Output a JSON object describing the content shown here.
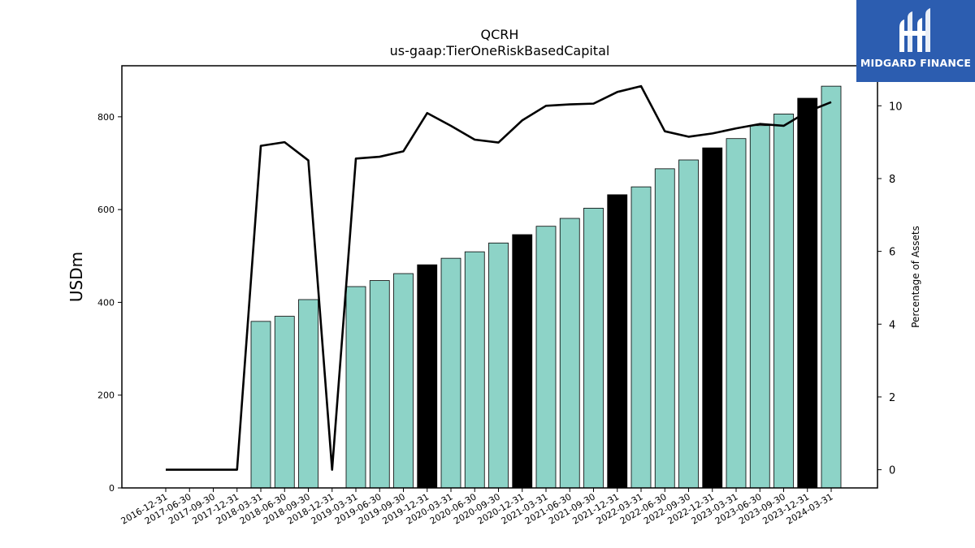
{
  "chart_data": {
    "type": "bar+line",
    "title": "QCRH",
    "subtitle": "us-gaap:TierOneRiskBasedCapital",
    "ylabel": "USDm",
    "y2label": "Percentage of Assets",
    "ylim": [
      0,
      910
    ],
    "y2lim": [
      -0.5,
      11.1
    ],
    "yticks": [
      0,
      200,
      400,
      600,
      800
    ],
    "y2ticks": [
      0,
      2,
      4,
      6,
      8,
      10
    ],
    "categories": [
      "2016-12-31",
      "2017-06-30",
      "2017-09-30",
      "2017-12-31",
      "2018-03-31",
      "2018-06-30",
      "2018-09-30",
      "2018-12-31",
      "2019-03-31",
      "2019-06-30",
      "2019-09-30",
      "2019-12-31",
      "2020-03-31",
      "2020-06-30",
      "2020-09-30",
      "2020-12-31",
      "2021-03-31",
      "2021-06-30",
      "2021-09-30",
      "2021-12-31",
      "2022-03-31",
      "2022-06-30",
      "2022-09-30",
      "2022-12-31",
      "2023-03-31",
      "2023-06-30",
      "2023-09-30",
      "2023-12-31",
      "2024-03-31"
    ],
    "series": [
      {
        "kind": "bar",
        "values": [
          null,
          null,
          null,
          null,
          359,
          370,
          406,
          null,
          434,
          447,
          462,
          481,
          495,
          509,
          528,
          546,
          564,
          581,
          603,
          632,
          649,
          688,
          707,
          733,
          753,
          781,
          806,
          840,
          866
        ],
        "colors": [
          "",
          "",
          "",
          "",
          "#8dd3c7",
          "#8dd3c7",
          "#8dd3c7",
          "",
          "#8dd3c7",
          "#8dd3c7",
          "#8dd3c7",
          "#000000",
          "#8dd3c7",
          "#8dd3c7",
          "#8dd3c7",
          "#000000",
          "#8dd3c7",
          "#8dd3c7",
          "#8dd3c7",
          "#000000",
          "#8dd3c7",
          "#8dd3c7",
          "#8dd3c7",
          "#000000",
          "#8dd3c7",
          "#8dd3c7",
          "#8dd3c7",
          "#000000",
          "#8dd3c7"
        ]
      },
      {
        "kind": "line",
        "axis": "right",
        "color": "#000000",
        "values": [
          0,
          0,
          0,
          0,
          8.9,
          9.0,
          8.5,
          0,
          8.55,
          8.6,
          8.75,
          9.8,
          9.45,
          9.07,
          8.99,
          9.6,
          10.0,
          10.04,
          10.06,
          10.38,
          10.54,
          9.3,
          9.15,
          9.24,
          9.38,
          9.5,
          9.45,
          9.84,
          10.1
        ]
      }
    ],
    "grid": false,
    "legend": "none"
  },
  "logo": {
    "text": "MIDGARD FINANCE",
    "bg": "#2c5db0"
  }
}
